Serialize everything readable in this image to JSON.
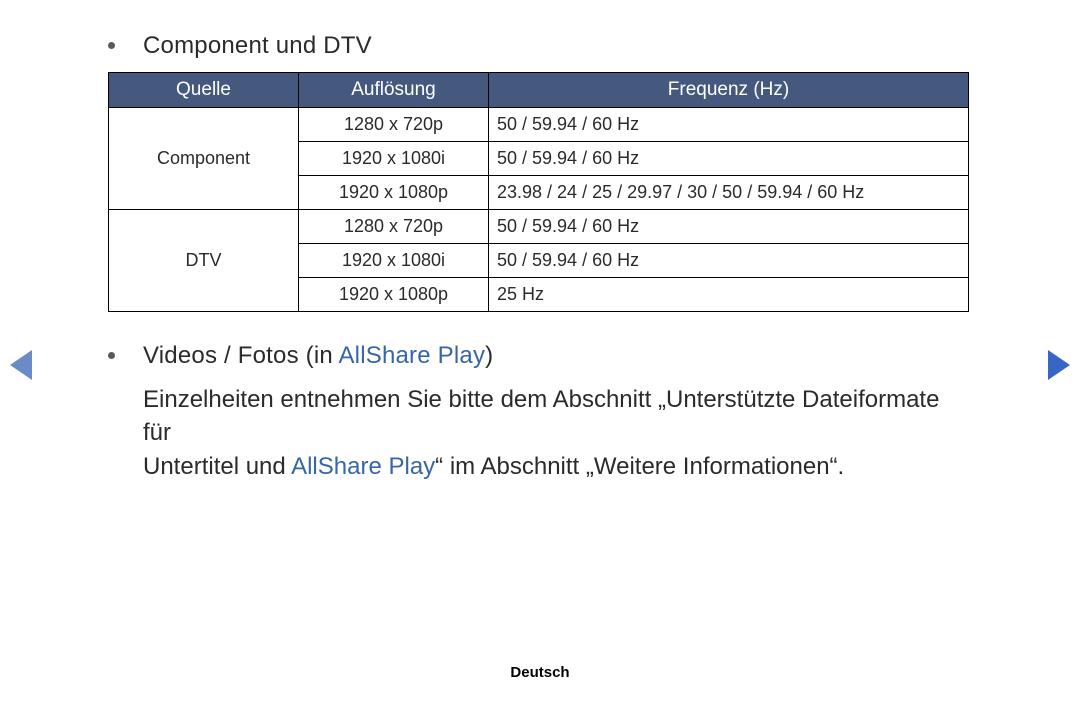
{
  "heading1": "Component und DTV",
  "table": {
    "headers": [
      "Quelle",
      "Auflösung",
      "Frequenz (Hz)"
    ],
    "header_bg": "#45597e",
    "header_color": "#ffffff",
    "sources": [
      {
        "name": "Component",
        "rows": [
          {
            "res": "1280 x 720p",
            "freq": "50 / 59.94 / 60 Hz"
          },
          {
            "res": "1920 x 1080i",
            "freq": "50 / 59.94 / 60 Hz"
          },
          {
            "res": "1920 x 1080p",
            "freq": "23.98 / 24 / 25 / 29.97 / 30 / 50 / 59.94 / 60 Hz"
          }
        ]
      },
      {
        "name": "DTV",
        "rows": [
          {
            "res": "1280 x 720p",
            "freq": "50 / 59.94 / 60 Hz"
          },
          {
            "res": "1920 x 1080i",
            "freq": "50 / 59.94 / 60 Hz"
          },
          {
            "res": "1920 x 1080p",
            "freq": "25 Hz"
          }
        ]
      }
    ]
  },
  "bullet2": {
    "pre": "Videos / Fotos (in ",
    "link": "AllShare Play",
    "post": ")"
  },
  "para": {
    "t1": "Einzelheiten entnehmen Sie bitte dem Abschnitt „Unterstützte Dateiformate für",
    "t2a": "Untertitel und ",
    "t2link": "AllShare Play",
    "t2b": "“ im Abschnitt „Weitere Informationen“."
  },
  "link_color": "#3766a6",
  "footer": "Deutsch"
}
